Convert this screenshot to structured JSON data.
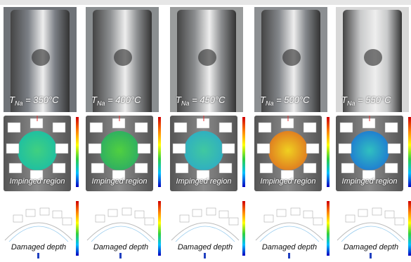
{
  "panels": [
    {
      "temperature": {
        "symbol": "T",
        "subscript": "Na",
        "text": " = 350°C"
      },
      "impinged_label": "Impinged region",
      "damage_label": "Damaged depth"
    },
    {
      "temperature": {
        "symbol": "T",
        "subscript": "Na",
        "text": " = 400°C"
      },
      "impinged_label": "Impinged region",
      "damage_label": "Damaged depth"
    },
    {
      "temperature": {
        "symbol": "T",
        "subscript": "Na",
        "text": " = 450°C"
      },
      "impinged_label": "Impinged region",
      "damage_label": "Damaged depth"
    },
    {
      "temperature": {
        "symbol": "T",
        "subscript": "Na",
        "text": " = 500°C"
      },
      "impinged_label": "Impinged region",
      "damage_label": "Damaged depth"
    },
    {
      "temperature": {
        "symbol": "T",
        "subscript": "Na",
        "text": " = 550°C"
      },
      "impinged_label": "Impinged region",
      "damage_label": "Damaged depth"
    }
  ]
}
